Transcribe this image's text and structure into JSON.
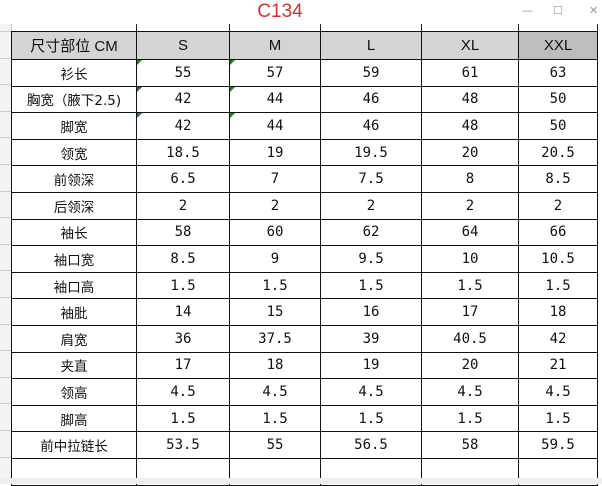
{
  "window": {
    "title": "C134",
    "controls": [
      "minimize",
      "maximize",
      "close"
    ]
  },
  "table": {
    "headers": [
      "尺寸部位  CM",
      "S",
      "M",
      "L",
      "XL",
      "XXL"
    ],
    "rows": [
      [
        "衫长",
        "55",
        "57",
        "59",
        "61",
        "63"
      ],
      [
        "胸宽（腋下2.5)",
        "42",
        "44",
        "46",
        "48",
        "50"
      ],
      [
        "脚宽",
        "42",
        "44",
        "46",
        "48",
        "50"
      ],
      [
        "领宽",
        "18.5",
        "19",
        "19.5",
        "20",
        "20.5"
      ],
      [
        "前领深",
        "6.5",
        "7",
        "7.5",
        "8",
        "8.5"
      ],
      [
        "后领深",
        "2",
        "2",
        "2",
        "2",
        "2"
      ],
      [
        "袖长",
        "58",
        "60",
        "62",
        "64",
        "66"
      ],
      [
        "袖口宽",
        "8.5",
        "9",
        "9.5",
        "10",
        "10.5"
      ],
      [
        "袖口高",
        "1.5",
        "1.5",
        "1.5",
        "1.5",
        "1.5"
      ],
      [
        "袖肶",
        "14",
        "15",
        "16",
        "17",
        "18"
      ],
      [
        "肩宽",
        "36",
        "37.5",
        "39",
        "40.5",
        "42"
      ],
      [
        "夹直",
        "17",
        "18",
        "19",
        "20",
        "21"
      ],
      [
        "领高",
        "4.5",
        "4.5",
        "4.5",
        "4.5",
        "4.5"
      ],
      [
        "脚高",
        "1.5",
        "1.5",
        "1.5",
        "1.5",
        "1.5"
      ],
      [
        "前中拉链长",
        "53.5",
        "55",
        "56.5",
        "58",
        "59.5"
      ]
    ]
  },
  "colors": {
    "title": "#d0332b",
    "header_bg": "#d4d4d4",
    "header_selected_bg": "#bdbdbd"
  }
}
